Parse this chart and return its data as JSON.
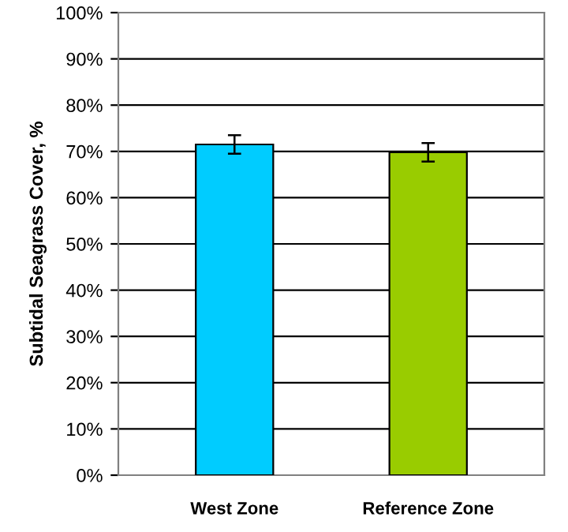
{
  "chart_data": {
    "type": "bar",
    "ylabel": "Subtidal Seagrass Cover, %",
    "categories": [
      "West Zone",
      "Reference Zone"
    ],
    "values": [
      71.5,
      69.8
    ],
    "colors": [
      "#00ccff",
      "#99cc00"
    ],
    "errors": [
      2,
      2
    ],
    "ylim": [
      0,
      100
    ],
    "yticks": [
      {
        "value": 0,
        "label": "0%"
      },
      {
        "value": 10,
        "label": "10%"
      },
      {
        "value": 20,
        "label": "20%"
      },
      {
        "value": 30,
        "label": "30%"
      },
      {
        "value": 40,
        "label": "40%"
      },
      {
        "value": 50,
        "label": "50%"
      },
      {
        "value": 60,
        "label": "60%"
      },
      {
        "value": 70,
        "label": "70%"
      },
      {
        "value": 80,
        "label": "80%"
      },
      {
        "value": 90,
        "label": "90%"
      },
      {
        "value": 100,
        "label": "100%"
      }
    ],
    "grid": "y",
    "legend": false
  }
}
